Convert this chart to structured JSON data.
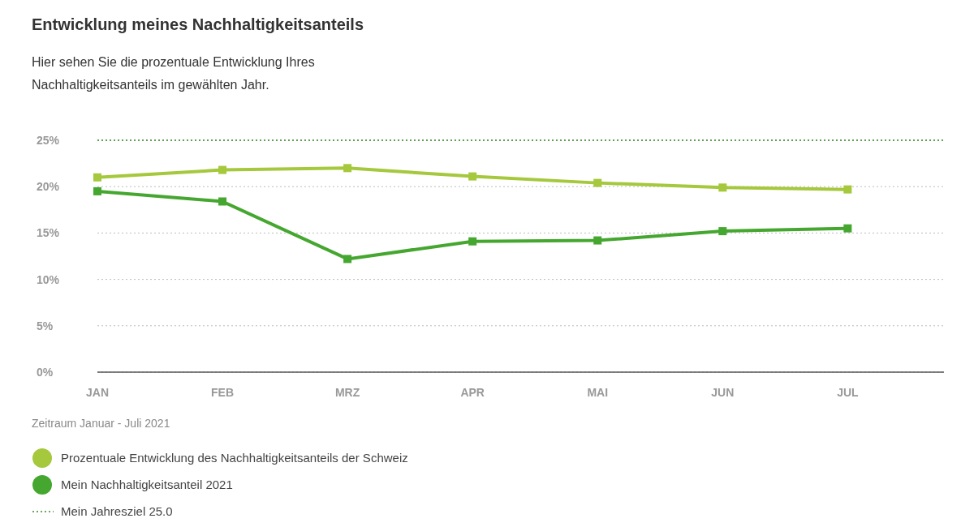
{
  "chart_data": {
    "type": "line",
    "title": "Entwicklung meines Nachhaltigkeitsanteils",
    "subtitle": "Hier sehen Sie die prozentuale Entwicklung Ihres Nachhaltigkeitsanteils im gewählten Jahr.",
    "categories": [
      "JAN",
      "FEB",
      "MRZ",
      "APR",
      "MAI",
      "JUN",
      "JUL"
    ],
    "series": [
      {
        "name": "Prozentuale Entwicklung des Nachhaltigkeitsanteils der Schweiz",
        "color": "#a5c83c",
        "values": [
          21.0,
          21.8,
          22.0,
          21.1,
          20.4,
          19.9,
          19.7
        ]
      },
      {
        "name": "Mein Nachhaltigkeitsanteil 2021",
        "color": "#45a72f",
        "values": [
          19.5,
          18.4,
          12.2,
          14.1,
          14.2,
          15.2,
          15.5
        ]
      }
    ],
    "ylim": [
      0,
      25
    ],
    "yticks": [
      {
        "value": 0,
        "label": "0%"
      },
      {
        "value": 5,
        "label": "5%"
      },
      {
        "value": 10,
        "label": "10%"
      },
      {
        "value": 15,
        "label": "15%"
      },
      {
        "value": 20,
        "label": "20%"
      },
      {
        "value": 25,
        "label": "25%"
      }
    ],
    "grid": "y",
    "marker": "square",
    "line_style": "solid",
    "legend": "bottom",
    "ref_lines": [
      {
        "axis": "y",
        "value": 25,
        "label": "Mein Jahresziel 25.0",
        "color": "#3a8a2a",
        "line_style": "dotted"
      }
    ],
    "annotations": [
      "Zeitraum Januar - Juli 2021"
    ]
  }
}
